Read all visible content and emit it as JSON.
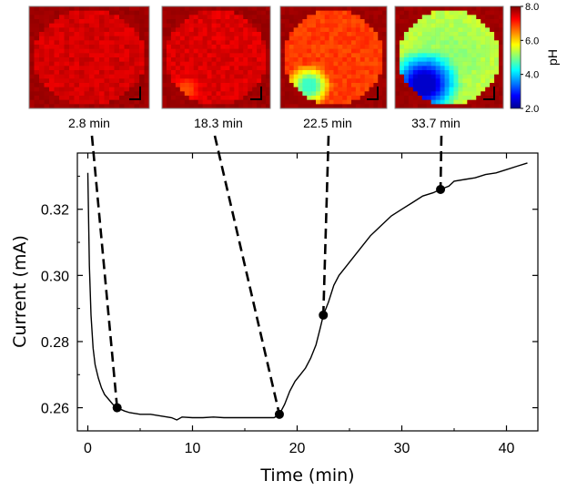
{
  "chart_data": {
    "type": "line",
    "xlabel": "Time (min)",
    "ylabel": "Current (mA)",
    "xlim": [
      -1,
      43
    ],
    "ylim": [
      0.253,
      0.337
    ],
    "xticks": [
      "0",
      "10",
      "20",
      "30",
      "40"
    ],
    "yticks": [
      "0.26",
      "0.28",
      "0.30",
      "0.32"
    ],
    "series": [
      {
        "x": [
          0.0,
          0.15,
          0.3,
          0.5,
          0.7,
          1.0,
          1.3,
          1.6,
          2.0,
          2.4,
          2.8,
          3.5,
          4.0,
          5.0,
          6.0,
          7.0,
          8.0,
          8.5,
          9.0,
          10.0,
          11.0,
          12.0,
          13.0,
          14.0,
          15.0,
          16.0,
          17.0,
          17.8,
          18.3,
          18.8,
          19.3,
          19.8,
          20.3,
          20.8,
          21.3,
          21.8,
          22.2,
          22.5,
          23.0,
          23.5,
          24.0,
          25.0,
          26.0,
          27.0,
          28.0,
          29.0,
          30.0,
          31.0,
          32.0,
          33.0,
          33.7,
          34.5,
          35.0,
          36.0,
          37.0,
          38.0,
          39.0,
          40.0,
          41.0,
          42.0
        ],
        "y": [
          0.331,
          0.303,
          0.288,
          0.278,
          0.273,
          0.269,
          0.266,
          0.264,
          0.2625,
          0.261,
          0.26,
          0.259,
          0.2585,
          0.258,
          0.258,
          0.2575,
          0.257,
          0.2563,
          0.2572,
          0.257,
          0.257,
          0.2572,
          0.257,
          0.257,
          0.257,
          0.257,
          0.257,
          0.257,
          0.258,
          0.261,
          0.265,
          0.268,
          0.27,
          0.272,
          0.275,
          0.279,
          0.284,
          0.288,
          0.292,
          0.297,
          0.3,
          0.304,
          0.308,
          0.312,
          0.315,
          0.318,
          0.32,
          0.322,
          0.324,
          0.325,
          0.326,
          0.327,
          0.3285,
          0.329,
          0.3295,
          0.3305,
          0.331,
          0.332,
          0.333,
          0.334
        ]
      }
    ],
    "highlight_points": [
      {
        "x": 2.8,
        "y": 0.26,
        "label": "2.8 min"
      },
      {
        "x": 18.3,
        "y": 0.258,
        "label": "18.3 min"
      },
      {
        "x": 22.5,
        "y": 0.288,
        "label": "22.5 min"
      },
      {
        "x": 33.7,
        "y": 0.326,
        "label": "33.7 min"
      }
    ],
    "colorbar": {
      "title": "pH",
      "min": 2.0,
      "max": 8.0,
      "ticks": [
        "2.0",
        "4.0",
        "6.0",
        "8.0"
      ]
    },
    "ph_maps": [
      {
        "label": "2.8 min",
        "base_ph": 7.5,
        "spot": null
      },
      {
        "label": "18.3 min",
        "base_ph": 7.45,
        "spot": {
          "cx": 0.22,
          "cy": 0.82,
          "r": 0.09,
          "ph": 6.8
        }
      },
      {
        "label": "22.5 min",
        "base_ph": 6.9,
        "spot": {
          "cx": 0.27,
          "cy": 0.78,
          "r": 0.14,
          "ph": 4.6
        }
      },
      {
        "label": "33.7 min",
        "base_ph": 5.0,
        "spot": {
          "cx": 0.27,
          "cy": 0.76,
          "r": 0.22,
          "ph": 2.4
        }
      }
    ]
  }
}
